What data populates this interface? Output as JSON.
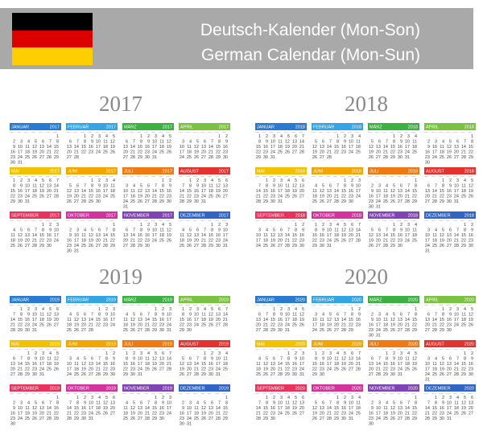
{
  "header": {
    "title_de": "Deutsch-Kalender (Mon-Son)",
    "title_en": "German Calendar (Mon-Sun)"
  },
  "months": [
    "JANUAR",
    "FEBRUAR",
    "MÄRZ",
    "APRIL",
    "MAI",
    "JUNI",
    "JULI",
    "AUGUST",
    "SEPTEMBER",
    "OKTOBER",
    "NOVEMBER",
    "DEZEMBER"
  ],
  "years": [
    2017,
    2018,
    2019,
    2020
  ],
  "day_numbers": [
    1,
    2,
    3,
    4,
    5,
    6,
    7,
    8,
    9,
    10,
    11,
    12,
    13,
    14,
    15,
    16,
    17,
    18,
    19,
    20,
    21,
    22,
    23,
    24,
    25,
    26,
    27,
    28,
    29,
    30,
    31
  ]
}
